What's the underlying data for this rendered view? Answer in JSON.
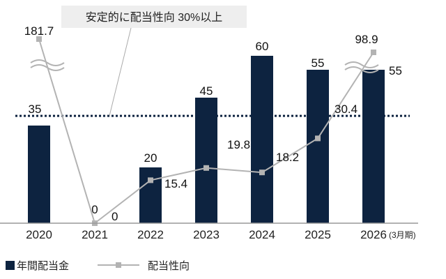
{
  "chart_data": {
    "type": "bar",
    "categories": [
      "2020",
      "2021",
      "2022",
      "2023",
      "2024",
      "2025",
      "2026"
    ],
    "x_suffix": "(3月期)",
    "series": [
      {
        "name": "年間配当金",
        "type": "bar",
        "values": [
          35,
          0,
          20,
          45,
          60,
          55,
          55
        ],
        "labels": [
          "35",
          "0",
          "20",
          "45",
          "60",
          "55",
          "55"
        ],
        "color": "#0d2340"
      },
      {
        "name": "配当性向",
        "type": "line",
        "values": [
          181.7,
          0,
          15.4,
          19.8,
          18.2,
          30.4,
          98.9
        ],
        "labels": [
          "181.7",
          "0",
          "15.4",
          "19.8",
          "18.2",
          "30.4",
          "98.9"
        ],
        "color": "#b3b3b3"
      }
    ],
    "reference_line": {
      "value": 30,
      "label": "安定的に配当性向 30%以上",
      "color": "#0d2340"
    },
    "axis_break": true,
    "legend_position": "bottom-left",
    "grid": false
  }
}
